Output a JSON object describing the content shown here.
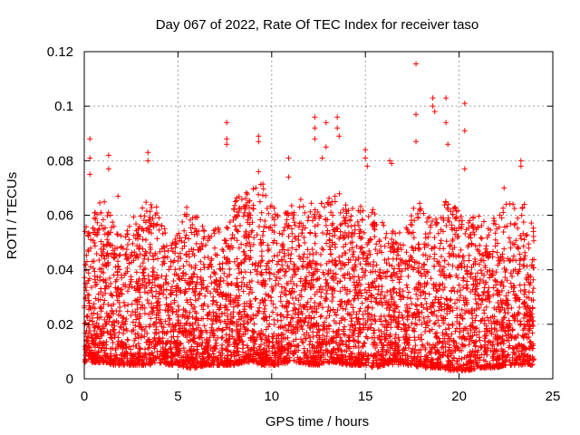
{
  "chart_data": {
    "type": "scatter",
    "title": "Day 067 of 2022, Rate Of TEC Index for receiver taso",
    "xlabel": "GPS time / hours",
    "ylabel": "ROTI / TECUs",
    "xlim": [
      0,
      25
    ],
    "ylim": [
      0,
      0.12
    ],
    "xticks": [
      "0",
      "5",
      "10",
      "15",
      "20",
      "25"
    ],
    "yticks": [
      "0",
      "0.02",
      "0.04",
      "0.06",
      "0.08",
      "0.1",
      "0.12"
    ],
    "grid": true,
    "marker": "+",
    "series_color": "#ff0000",
    "grid_color": "#a0a0a0",
    "envelope": {
      "x": [
        0,
        0.5,
        1,
        1.5,
        2,
        2.5,
        3,
        3.5,
        4,
        4.5,
        5,
        5.5,
        6,
        6.5,
        7,
        7.5,
        8,
        8.5,
        9,
        9.5,
        10,
        10.5,
        11,
        11.5,
        12,
        12.5,
        13,
        13.5,
        14,
        14.5,
        15,
        15.5,
        16,
        16.5,
        17,
        17.5,
        18,
        18.5,
        19,
        19.5,
        20,
        20.5,
        21,
        21.5,
        22,
        22.5,
        23,
        23.5,
        24
      ],
      "y_max": [
        0.056,
        0.062,
        0.066,
        0.06,
        0.052,
        0.058,
        0.064,
        0.066,
        0.062,
        0.05,
        0.054,
        0.064,
        0.06,
        0.054,
        0.055,
        0.056,
        0.066,
        0.068,
        0.07,
        0.072,
        0.066,
        0.06,
        0.064,
        0.066,
        0.065,
        0.064,
        0.066,
        0.07,
        0.064,
        0.062,
        0.066,
        0.062,
        0.058,
        0.055,
        0.053,
        0.062,
        0.066,
        0.06,
        0.064,
        0.066,
        0.062,
        0.058,
        0.062,
        0.058,
        0.06,
        0.064,
        0.066,
        0.064,
        0.056
      ],
      "y_min": [
        0.006,
        0.006,
        0.006,
        0.005,
        0.005,
        0.005,
        0.005,
        0.005,
        0.006,
        0.005,
        0.005,
        0.004,
        0.004,
        0.005,
        0.005,
        0.005,
        0.005,
        0.006,
        0.006,
        0.005,
        0.005,
        0.005,
        0.006,
        0.006,
        0.005,
        0.005,
        0.006,
        0.006,
        0.005,
        0.005,
        0.005,
        0.004,
        0.005,
        0.005,
        0.005,
        0.005,
        0.004,
        0.004,
        0.004,
        0.003,
        0.003,
        0.003,
        0.004,
        0.004,
        0.004,
        0.005,
        0.005,
        0.005,
        0.005
      ]
    },
    "outliers": [
      {
        "x": 0.3,
        "y": 0.088
      },
      {
        "x": 0.3,
        "y": 0.081
      },
      {
        "x": 0.3,
        "y": 0.075
      },
      {
        "x": 1.3,
        "y": 0.082
      },
      {
        "x": 1.3,
        "y": 0.077
      },
      {
        "x": 1.8,
        "y": 0.067
      },
      {
        "x": 3.4,
        "y": 0.083
      },
      {
        "x": 3.4,
        "y": 0.08
      },
      {
        "x": 7.6,
        "y": 0.094
      },
      {
        "x": 7.6,
        "y": 0.088
      },
      {
        "x": 7.6,
        "y": 0.086
      },
      {
        "x": 9.3,
        "y": 0.089
      },
      {
        "x": 9.3,
        "y": 0.087
      },
      {
        "x": 9.3,
        "y": 0.076
      },
      {
        "x": 10.9,
        "y": 0.081
      },
      {
        "x": 10.9,
        "y": 0.074
      },
      {
        "x": 12.3,
        "y": 0.096
      },
      {
        "x": 12.3,
        "y": 0.092
      },
      {
        "x": 12.3,
        "y": 0.088
      },
      {
        "x": 12.9,
        "y": 0.094
      },
      {
        "x": 12.9,
        "y": 0.085
      },
      {
        "x": 12.7,
        "y": 0.081
      },
      {
        "x": 13.5,
        "y": 0.096
      },
      {
        "x": 13.5,
        "y": 0.092
      },
      {
        "x": 13.6,
        "y": 0.089
      },
      {
        "x": 15.0,
        "y": 0.084
      },
      {
        "x": 15.0,
        "y": 0.081
      },
      {
        "x": 15.1,
        "y": 0.078
      },
      {
        "x": 16.3,
        "y": 0.08
      },
      {
        "x": 16.4,
        "y": 0.079
      },
      {
        "x": 17.7,
        "y": 0.1155
      },
      {
        "x": 17.7,
        "y": 0.097
      },
      {
        "x": 17.7,
        "y": 0.087
      },
      {
        "x": 18.6,
        "y": 0.103
      },
      {
        "x": 18.6,
        "y": 0.1
      },
      {
        "x": 18.7,
        "y": 0.098
      },
      {
        "x": 19.3,
        "y": 0.103
      },
      {
        "x": 19.3,
        "y": 0.094
      },
      {
        "x": 19.4,
        "y": 0.086
      },
      {
        "x": 20.3,
        "y": 0.101
      },
      {
        "x": 20.3,
        "y": 0.091
      },
      {
        "x": 20.3,
        "y": 0.077
      },
      {
        "x": 22.4,
        "y": 0.07
      },
      {
        "x": 23.3,
        "y": 0.08
      },
      {
        "x": 23.3,
        "y": 0.078
      }
    ]
  }
}
